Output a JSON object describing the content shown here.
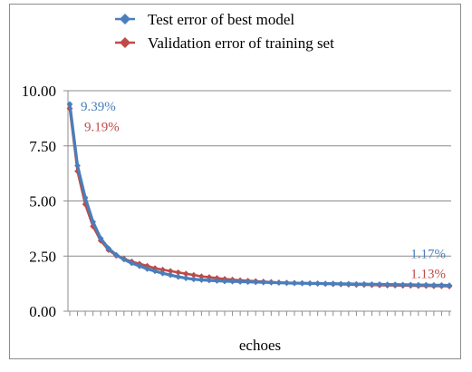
{
  "chart_data": {
    "type": "line",
    "title": "",
    "xlabel": "echoes",
    "ylabel": "",
    "ylim": [
      0,
      10
    ],
    "y_ticks": [
      "0.00",
      "2.50",
      "5.00",
      "7.50",
      "10.00"
    ],
    "y_tick_values": [
      0,
      2.5,
      5,
      7.5,
      10
    ],
    "x_count": 50,
    "grid": "horizontal",
    "legend_position": "top-center",
    "series": [
      {
        "name": "Test error of best model",
        "color": "#4a7ebb",
        "marker": "diamond",
        "values": [
          9.39,
          6.6,
          5.15,
          4.05,
          3.3,
          2.85,
          2.55,
          2.35,
          2.18,
          2.05,
          1.92,
          1.82,
          1.72,
          1.64,
          1.56,
          1.5,
          1.45,
          1.42,
          1.4,
          1.38,
          1.36,
          1.35,
          1.34,
          1.33,
          1.32,
          1.31,
          1.3,
          1.29,
          1.28,
          1.27,
          1.27,
          1.26,
          1.26,
          1.25,
          1.25,
          1.24,
          1.24,
          1.23,
          1.23,
          1.22,
          1.22,
          1.21,
          1.21,
          1.2,
          1.2,
          1.19,
          1.19,
          1.18,
          1.18,
          1.17
        ]
      },
      {
        "name": "Validation error of training set",
        "color": "#be4b48",
        "marker": "diamond",
        "values": [
          9.19,
          6.35,
          4.85,
          3.85,
          3.2,
          2.78,
          2.52,
          2.38,
          2.25,
          2.15,
          2.05,
          1.95,
          1.88,
          1.82,
          1.76,
          1.7,
          1.64,
          1.58,
          1.54,
          1.5,
          1.46,
          1.43,
          1.4,
          1.38,
          1.36,
          1.34,
          1.32,
          1.3,
          1.29,
          1.28,
          1.27,
          1.26,
          1.25,
          1.24,
          1.23,
          1.22,
          1.21,
          1.2,
          1.2,
          1.19,
          1.18,
          1.17,
          1.17,
          1.16,
          1.16,
          1.15,
          1.15,
          1.14,
          1.14,
          1.13
        ]
      }
    ],
    "annotations": [
      {
        "series": 0,
        "point": "first",
        "text": "9.39%"
      },
      {
        "series": 1,
        "point": "first",
        "text": "9.19%"
      },
      {
        "series": 0,
        "point": "last",
        "text": "1.17%"
      },
      {
        "series": 1,
        "point": "last",
        "text": "1.13%"
      }
    ]
  }
}
